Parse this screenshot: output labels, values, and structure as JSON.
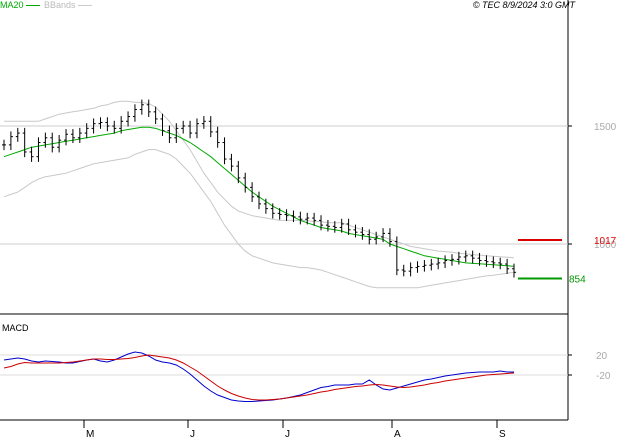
{
  "legend": {
    "ma_label": "MA20",
    "bb_label": "BBands"
  },
  "source": "© TEC 8/9/2024 3:0 GMT",
  "macd_panel_label": "MACD",
  "chart_data": [
    {
      "type": "ohlc",
      "x_labels": [
        "M",
        "J",
        "J",
        "A",
        "S"
      ],
      "y_ticks": [
        1500,
        1000
      ],
      "y_tick_labels": [
        "1500",
        "1000"
      ],
      "grid": true,
      "levels": [
        {
          "label": "1017",
          "value": 1017,
          "color": "#dd0000"
        },
        {
          "label": "854",
          "value": 854,
          "color": "#009900"
        }
      ],
      "close": [
        1420,
        1455,
        1470,
        1390,
        1370,
        1430,
        1450,
        1410,
        1440,
        1465,
        1450,
        1470,
        1490,
        1510,
        1515,
        1500,
        1490,
        1520,
        1540,
        1570,
        1590,
        1560,
        1530,
        1480,
        1450,
        1490,
        1500,
        1470,
        1510,
        1520,
        1475,
        1430,
        1360,
        1330,
        1280,
        1240,
        1200,
        1170,
        1150,
        1130,
        1125,
        1120,
        1115,
        1105,
        1110,
        1100,
        1080,
        1075,
        1070,
        1085,
        1060,
        1050,
        1040,
        1020,
        1030,
        1045,
        1010,
        890,
        885,
        900,
        905,
        910,
        915,
        920,
        930,
        935,
        945,
        950,
        940,
        930,
        925,
        920,
        915,
        895,
        880
      ],
      "ma20": [
        1370,
        1380,
        1390,
        1400,
        1410,
        1415,
        1420,
        1425,
        1430,
        1435,
        1440,
        1445,
        1450,
        1455,
        1460,
        1465,
        1470,
        1480,
        1485,
        1490,
        1495,
        1495,
        1490,
        1480,
        1470,
        1460,
        1445,
        1430,
        1410,
        1390,
        1370,
        1345,
        1320,
        1295,
        1270,
        1245,
        1220,
        1200,
        1180,
        1160,
        1145,
        1130,
        1115,
        1100,
        1090,
        1080,
        1070,
        1065,
        1060,
        1055,
        1045,
        1040,
        1035,
        1030,
        1025,
        1020,
        1000,
        990,
        980,
        970,
        960,
        950,
        945,
        940,
        935,
        930,
        925,
        920,
        918,
        916,
        914,
        912,
        910,
        908,
        905
      ],
      "bb_upper": [
        1520,
        1520,
        1520,
        1520,
        1520,
        1520,
        1530,
        1540,
        1550,
        1555,
        1560,
        1565,
        1570,
        1575,
        1585,
        1590,
        1600,
        1605,
        1605,
        1600,
        1600,
        1595,
        1580,
        1550,
        1520,
        1480,
        1440,
        1400,
        1350,
        1300,
        1260,
        1220,
        1190,
        1160,
        1140,
        1130,
        1120,
        1115,
        1110,
        1105,
        1100,
        1100,
        1100,
        1100,
        1100,
        1095,
        1095,
        1090,
        1090,
        1090,
        1080,
        1070,
        1060,
        1050,
        1040,
        1030,
        1020,
        1010,
        1000,
        990,
        985,
        980,
        975,
        970,
        968,
        965,
        960,
        958,
        955,
        953,
        950,
        948,
        946,
        944,
        942
      ],
      "bb_lower": [
        1200,
        1210,
        1220,
        1240,
        1260,
        1275,
        1285,
        1290,
        1295,
        1300,
        1310,
        1320,
        1330,
        1340,
        1345,
        1350,
        1355,
        1360,
        1365,
        1380,
        1390,
        1400,
        1400,
        1390,
        1380,
        1360,
        1330,
        1300,
        1260,
        1220,
        1180,
        1130,
        1080,
        1040,
        1000,
        970,
        950,
        940,
        930,
        920,
        915,
        910,
        905,
        900,
        900,
        895,
        890,
        880,
        870,
        860,
        850,
        840,
        830,
        820,
        815,
        815,
        815,
        815,
        815,
        815,
        815,
        820,
        825,
        830,
        835,
        840,
        845,
        850,
        855,
        860,
        865,
        868,
        872,
        876,
        880
      ]
    },
    {
      "type": "line",
      "title": "MACD",
      "y_ticks": [
        20,
        -20
      ],
      "y_tick_labels": [
        "20",
        "-20"
      ],
      "series": [
        {
          "values": [
            10,
            12,
            14,
            12,
            8,
            6,
            8,
            7,
            6,
            4,
            4,
            7,
            10,
            12,
            8,
            6,
            10,
            16,
            22,
            26,
            24,
            18,
            10,
            6,
            4,
            0,
            -8,
            -18,
            -30,
            -42,
            -52,
            -60,
            -65,
            -70,
            -72,
            -73,
            -73,
            -72,
            -71,
            -70,
            -68,
            -66,
            -63,
            -60,
            -55,
            -50,
            -45,
            -43,
            -40,
            -40,
            -40,
            -38,
            -38,
            -30,
            -40,
            -48,
            -50,
            -46,
            -42,
            -38,
            -34,
            -30,
            -28,
            -25,
            -22,
            -20,
            -18,
            -16,
            -15,
            -14,
            -14,
            -14,
            -12,
            -14,
            -14
          ],
          "color": "#0000cc"
        },
        {
          "values": [
            -6,
            -3,
            2,
            5,
            4,
            4,
            4,
            4,
            4,
            5,
            6,
            8,
            10,
            12,
            12,
            11,
            11,
            12,
            13,
            15,
            18,
            20,
            18,
            16,
            14,
            10,
            4,
            -4,
            -12,
            -22,
            -32,
            -42,
            -50,
            -57,
            -62,
            -66,
            -69,
            -70,
            -70,
            -69,
            -68,
            -66,
            -64,
            -62,
            -60,
            -57,
            -54,
            -52,
            -49,
            -47,
            -45,
            -43,
            -42,
            -40,
            -39,
            -40,
            -42,
            -44,
            -45,
            -44,
            -42,
            -40,
            -37,
            -35,
            -32,
            -30,
            -28,
            -26,
            -24,
            -22,
            -20,
            -19,
            -18,
            -17,
            -16
          ],
          "color": "#cc0000"
        }
      ]
    }
  ]
}
